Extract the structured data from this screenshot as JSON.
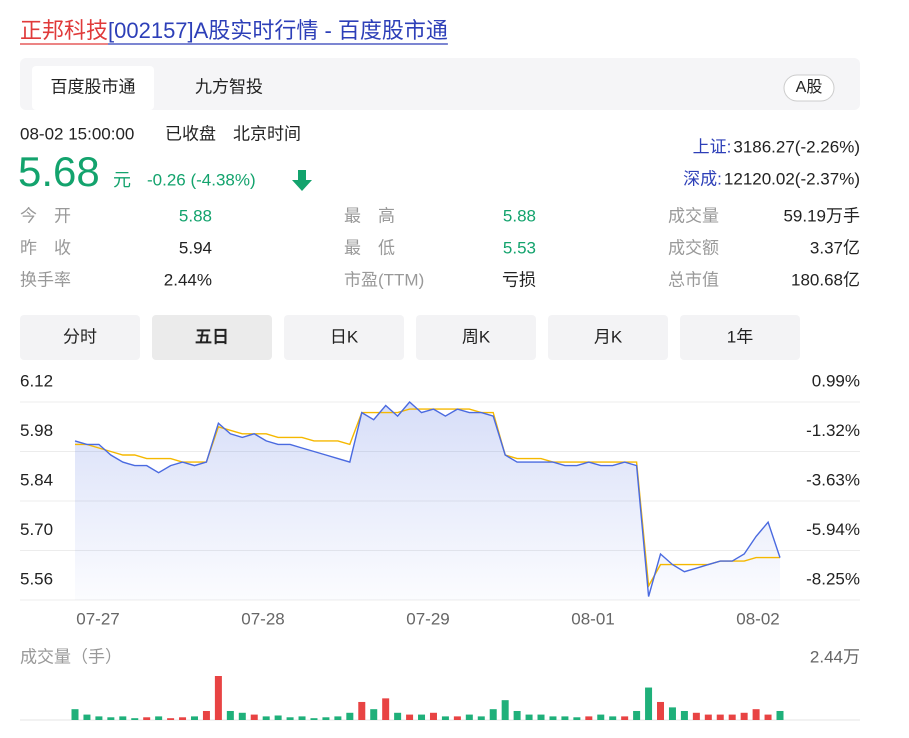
{
  "title_parts": [
    "正邦科技",
    "[002157]A股实时行情 - 百度股市通"
  ],
  "tabs": [
    "百度股市通",
    "九方智投"
  ],
  "badge": "A股",
  "status": {
    "time": "08-02 15:00:00",
    "state": "已收盘",
    "zone": "北京时间"
  },
  "price": {
    "value": "5.68",
    "unit": "元",
    "change": "-0.26 (-4.38%)",
    "color": "#13a36d"
  },
  "indices": [
    {
      "name": "上证:",
      "value": "3186.27(-2.26%)"
    },
    {
      "name": "深成:",
      "value": "12120.02(-2.37%)"
    }
  ],
  "stats": [
    {
      "label": "今　开",
      "value": "5.88",
      "color": "#13a36d"
    },
    {
      "label": "最　高",
      "value": "5.88",
      "color": "#13a36d"
    },
    {
      "label": "成交量",
      "value": "59.19万手"
    },
    {
      "label": "昨　收",
      "value": "5.94"
    },
    {
      "label": "最　低",
      "value": "5.53",
      "color": "#13a36d"
    },
    {
      "label": "成交额",
      "value": "3.37亿"
    },
    {
      "label": "换手率",
      "value": "2.44%"
    },
    {
      "label": "市盈(TTM)",
      "value": "亏损"
    },
    {
      "label": "总市值",
      "value": "180.68亿"
    }
  ],
  "periods": [
    "分时",
    "五日",
    "日K",
    "周K",
    "月K",
    "1年"
  ],
  "selected_period": 1,
  "chart_data": {
    "type": "line",
    "x_labels": [
      "07-27",
      "07-28",
      "07-29",
      "08-01",
      "08-02"
    ],
    "ylim": [
      5.56,
      6.12
    ],
    "yticks": [
      6.12,
      5.98,
      5.84,
      {
        "value": 5.7,
        "label": "5.70"
      },
      5.56
    ],
    "y2lim": [
      -8.25,
      0.99
    ],
    "y2ticks": [
      {
        "value": 0.99,
        "label": "0.99%"
      },
      {
        "value": -1.32,
        "label": "-1.32%"
      },
      {
        "value": -3.63,
        "label": "-3.63%"
      },
      {
        "value": -5.94,
        "label": "-5.94%"
      },
      {
        "value": -8.25,
        "label": "-8.25%"
      }
    ],
    "grid": true,
    "series": [
      {
        "color": "#4a6ae0",
        "values": [
          6.01,
          6.0,
          6.0,
          5.97,
          5.95,
          5.94,
          5.94,
          5.92,
          5.94,
          5.95,
          5.94,
          5.95,
          6.06,
          6.03,
          6.02,
          6.03,
          6.01,
          6.0,
          6.0,
          5.99,
          5.98,
          5.97,
          5.96,
          5.95,
          6.09,
          6.07,
          6.11,
          6.08,
          6.12,
          6.09,
          6.1,
          6.08,
          6.1,
          6.09,
          6.09,
          6.08,
          5.97,
          5.95,
          5.95,
          5.95,
          5.95,
          5.94,
          5.94,
          5.95,
          5.94,
          5.94,
          5.95,
          5.94,
          5.57,
          5.69,
          5.66,
          5.64,
          5.65,
          5.66,
          5.67,
          5.67,
          5.69,
          5.74,
          5.78,
          5.68
        ]
      },
      {
        "color": "#f5b800",
        "values": [
          6.0,
          6.0,
          5.99,
          5.98,
          5.97,
          5.97,
          5.96,
          5.96,
          5.96,
          5.95,
          5.95,
          5.95,
          6.05,
          6.04,
          6.03,
          6.03,
          6.03,
          6.02,
          6.02,
          6.02,
          6.01,
          6.01,
          6.01,
          6.0,
          6.09,
          6.09,
          6.09,
          6.09,
          6.1,
          6.1,
          6.1,
          6.1,
          6.1,
          6.1,
          6.09,
          6.09,
          5.97,
          5.96,
          5.96,
          5.96,
          5.95,
          5.95,
          5.95,
          5.95,
          5.95,
          5.95,
          5.95,
          5.95,
          5.6,
          5.66,
          5.66,
          5.66,
          5.66,
          5.66,
          5.67,
          5.67,
          5.67,
          5.68,
          5.68,
          5.68
        ]
      }
    ]
  },
  "volume_chart": {
    "type": "bar",
    "title": "成交量（手）",
    "ylim": [
      0,
      2.44
    ],
    "yticks": [
      {
        "value": 2.44,
        "label": "2.44万"
      }
    ],
    "up_color": "#e84343",
    "down_color": "#1fb07a",
    "values": [
      0.6,
      0.3,
      0.2,
      0.15,
      0.2,
      0.1,
      0.15,
      0.2,
      0.1,
      0.15,
      0.2,
      0.5,
      2.44,
      0.5,
      0.4,
      0.3,
      0.2,
      0.25,
      0.15,
      0.2,
      0.1,
      0.15,
      0.2,
      0.4,
      1.0,
      0.6,
      1.2,
      0.4,
      0.3,
      0.3,
      0.4,
      0.2,
      0.2,
      0.3,
      0.2,
      0.6,
      1.1,
      0.5,
      0.3,
      0.3,
      0.2,
      0.2,
      0.15,
      0.2,
      0.3,
      0.2,
      0.2,
      0.5,
      1.8,
      1.0,
      0.7,
      0.5,
      0.4,
      0.3,
      0.3,
      0.3,
      0.4,
      0.6,
      0.3,
      0.5
    ],
    "up": [
      false,
      false,
      false,
      false,
      false,
      false,
      true,
      false,
      true,
      true,
      false,
      true,
      true,
      false,
      false,
      true,
      false,
      false,
      false,
      false,
      false,
      false,
      false,
      false,
      true,
      false,
      true,
      false,
      true,
      false,
      true,
      false,
      true,
      false,
      false,
      false,
      false,
      false,
      false,
      false,
      false,
      false,
      false,
      true,
      false,
      false,
      true,
      false,
      false,
      true,
      false,
      false,
      true,
      true,
      true,
      true,
      true,
      true,
      true,
      false
    ]
  }
}
